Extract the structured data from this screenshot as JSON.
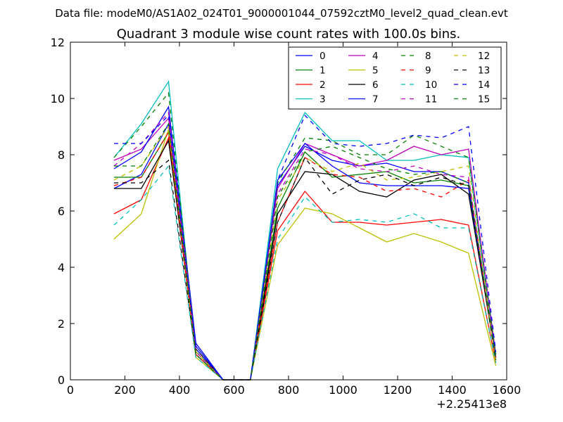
{
  "suptitle": "Data file: modeM0/AS1A02_024T01_9000001044_07592cztM0_level2_quad_clean.evt",
  "chart_data": {
    "type": "line",
    "title": "Quadrant 3 module wise count rates with 100.0s bins.",
    "xlabel": "",
    "ylabel": "",
    "xlim": [
      0,
      1600
    ],
    "ylim": [
      0,
      12
    ],
    "x_offset_label": "+2.25413e8",
    "x_ticks": [
      0,
      200,
      400,
      600,
      800,
      1000,
      1200,
      1400,
      1600
    ],
    "y_ticks": [
      0,
      2,
      4,
      6,
      8,
      10,
      12
    ],
    "x": [
      160,
      260,
      360,
      460,
      560,
      660,
      760,
      860,
      960,
      1060,
      1160,
      1260,
      1360,
      1460,
      1560
    ],
    "legend_position": "top-right",
    "legend_columns": 4,
    "series": [
      {
        "name": "0",
        "color": "#0000ff",
        "dash": "solid",
        "values": [
          6.8,
          7.3,
          9.1,
          1.2,
          0,
          0,
          6.9,
          8.3,
          7.8,
          7.6,
          7.7,
          7.4,
          7.4,
          7.0,
          0.7
        ]
      },
      {
        "name": "1",
        "color": "#008000",
        "dash": "solid",
        "values": [
          7.2,
          7.2,
          8.8,
          1.0,
          0,
          0,
          6.1,
          8.1,
          7.2,
          7.3,
          7.4,
          7.0,
          7.1,
          6.9,
          0.7
        ]
      },
      {
        "name": "2",
        "color": "#ff0000",
        "dash": "solid",
        "values": [
          5.9,
          6.4,
          8.6,
          0.9,
          0,
          0,
          5.3,
          6.7,
          5.6,
          5.6,
          5.5,
          5.6,
          5.7,
          5.5,
          0.6
        ]
      },
      {
        "name": "3",
        "color": "#00bfbf",
        "dash": "solid",
        "values": [
          7.9,
          9.1,
          10.6,
          0.9,
          0,
          0,
          7.5,
          9.5,
          8.5,
          8.5,
          7.8,
          7.8,
          8.0,
          7.9,
          0.8
        ]
      },
      {
        "name": "4",
        "color": "#bf00bf",
        "dash": "solid",
        "values": [
          7.8,
          8.2,
          9.3,
          1.0,
          0,
          0,
          6.8,
          8.4,
          8.0,
          7.6,
          7.8,
          8.3,
          8.0,
          8.2,
          0.9
        ]
      },
      {
        "name": "5",
        "color": "#bfbf00",
        "dash": "solid",
        "values": [
          5.0,
          5.9,
          8.9,
          0.8,
          0,
          0,
          4.8,
          6.1,
          5.9,
          5.4,
          4.9,
          5.2,
          4.9,
          4.5,
          0.5
        ]
      },
      {
        "name": "6",
        "color": "#000000",
        "dash": "solid",
        "values": [
          6.8,
          6.8,
          8.5,
          1.1,
          0,
          0,
          5.9,
          7.4,
          7.3,
          6.7,
          6.5,
          7.1,
          7.3,
          6.6,
          0.8
        ]
      },
      {
        "name": "7",
        "color": "#0000ff",
        "dash": "solid",
        "values": [
          7.5,
          8.1,
          9.7,
          1.3,
          0,
          0,
          7.1,
          8.4,
          7.6,
          7.0,
          6.9,
          6.9,
          6.9,
          6.8,
          0.9
        ]
      },
      {
        "name": "8",
        "color": "#008000",
        "dash": "dashed",
        "values": [
          7.9,
          9.0,
          10.2,
          1.0,
          0,
          0,
          7.0,
          8.6,
          8.5,
          8.0,
          8.0,
          8.7,
          8.3,
          7.9,
          0.9
        ]
      },
      {
        "name": "9",
        "color": "#ff0000",
        "dash": "dashed",
        "values": [
          6.9,
          7.2,
          8.8,
          0.9,
          0,
          0,
          5.6,
          7.9,
          7.3,
          7.2,
          6.7,
          6.8,
          6.5,
          7.1,
          0.7
        ]
      },
      {
        "name": "10",
        "color": "#00bfbf",
        "dash": "dashed",
        "values": [
          5.5,
          6.4,
          7.6,
          0.8,
          0,
          0,
          5.0,
          6.5,
          5.6,
          5.7,
          5.6,
          5.9,
          5.4,
          5.4,
          0.6
        ]
      },
      {
        "name": "11",
        "color": "#bf00bf",
        "dash": "dashed",
        "values": [
          7.6,
          8.4,
          9.5,
          1.0,
          0,
          0,
          6.6,
          8.2,
          8.0,
          7.5,
          7.4,
          7.6,
          7.3,
          7.2,
          0.8
        ]
      },
      {
        "name": "12",
        "color": "#bfbf00",
        "dash": "dashed",
        "values": [
          7.1,
          7.6,
          9.0,
          1.0,
          0,
          0,
          6.4,
          7.9,
          7.4,
          7.7,
          7.1,
          7.2,
          7.4,
          7.6,
          0.6
        ]
      },
      {
        "name": "13",
        "color": "#000000",
        "dash": "dashed",
        "values": [
          7.0,
          7.0,
          7.8,
          0.9,
          0,
          0,
          5.6,
          7.9,
          6.6,
          7.1,
          7.3,
          6.9,
          7.2,
          6.9,
          0.7
        ]
      },
      {
        "name": "14",
        "color": "#0000ff",
        "dash": "dashed",
        "values": [
          8.4,
          8.4,
          9.4,
          1.1,
          0,
          0,
          7.1,
          9.4,
          8.4,
          8.3,
          8.4,
          8.7,
          8.6,
          9.0,
          1.0
        ]
      },
      {
        "name": "15",
        "color": "#008000",
        "dash": "dashed",
        "values": [
          7.6,
          7.6,
          9.1,
          0.9,
          0,
          0,
          6.5,
          8.1,
          8.3,
          7.9,
          7.5,
          7.3,
          7.4,
          7.0,
          0.8
        ]
      }
    ]
  }
}
